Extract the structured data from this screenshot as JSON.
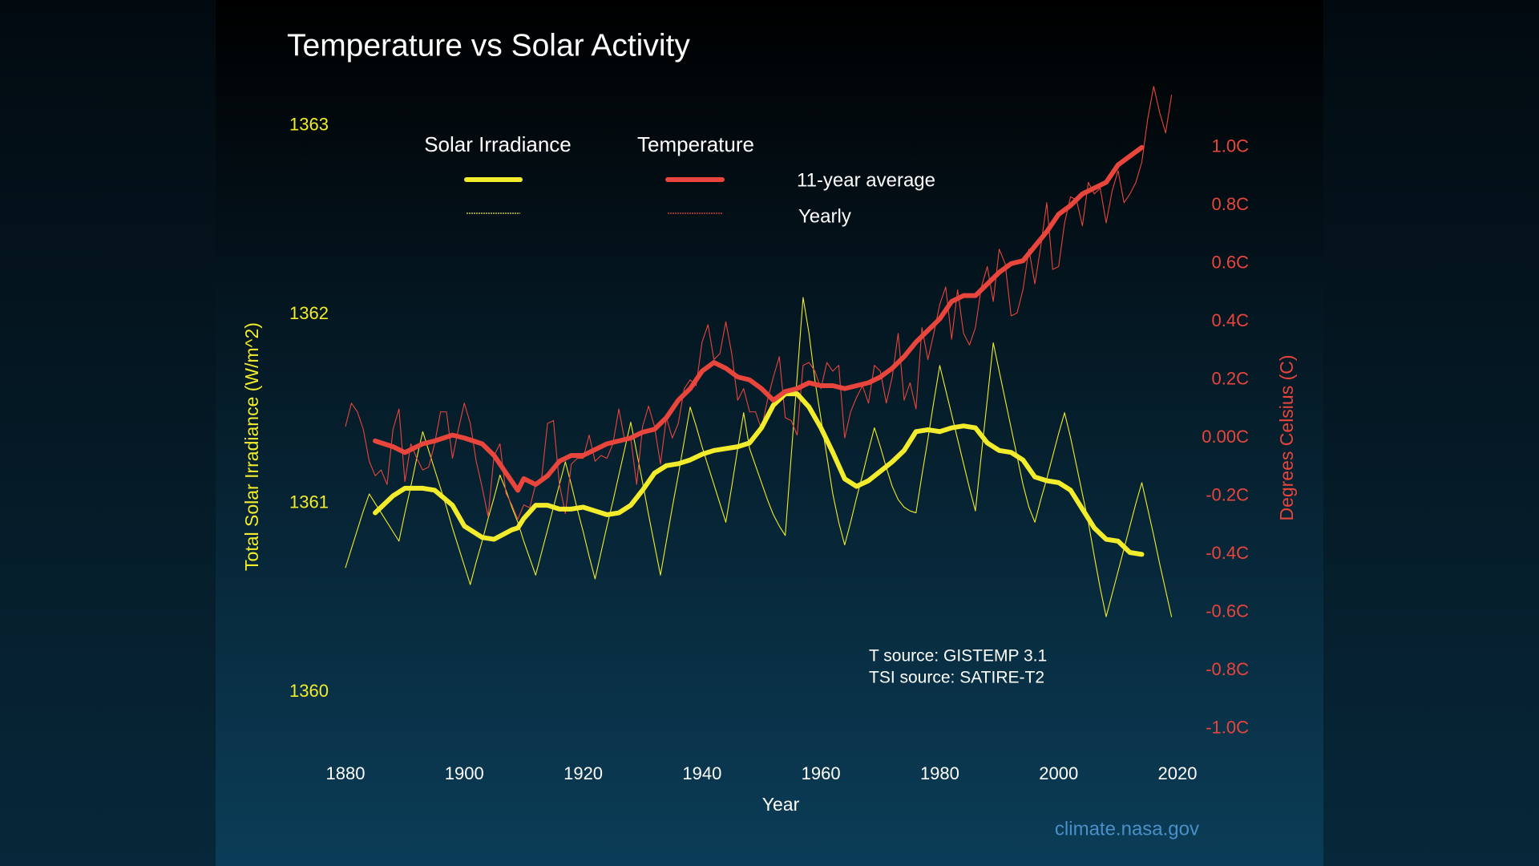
{
  "chart_data": {
    "type": "line",
    "title": "Temperature vs Solar Activity",
    "x_label": "Year",
    "y_label": "Total Solar Irradiance (W/m^2)",
    "y2_label": "Degrees Celsius (C)",
    "xlim": [
      1880,
      2020
    ],
    "xticks": [
      1880,
      1900,
      1920,
      1940,
      1960,
      1980,
      2000,
      2020
    ],
    "ylim": [
      1359.7,
      1363.3
    ],
    "yticks": [
      1360,
      1361,
      1362,
      1363
    ],
    "y2lim": [
      -1.07,
      1.27
    ],
    "y2ticks": [
      {
        "value": 1,
        "label": "1.0C"
      },
      {
        "value": 0.8,
        "label": "0.8C"
      },
      {
        "value": 0.6,
        "label": "0.6C"
      },
      {
        "value": 0.4,
        "label": "0.4C"
      },
      {
        "value": 0.2,
        "label": "0.2C"
      },
      {
        "value": 0,
        "label": "0.00C"
      },
      {
        "value": -0.2,
        "label": "-0.2C"
      },
      {
        "value": -0.4,
        "label": "-0.4C"
      },
      {
        "value": -0.6,
        "label": "-0.6C"
      },
      {
        "value": -0.8,
        "label": "-0.8C"
      },
      {
        "value": -1,
        "label": "-1.0C"
      }
    ],
    "grid": false,
    "legend_rows": [
      "11-year average",
      "Yearly"
    ],
    "x": [
      1880,
      1881,
      1882,
      1883,
      1884,
      1885,
      1886,
      1887,
      1888,
      1889,
      1890,
      1891,
      1892,
      1893,
      1894,
      1895,
      1896,
      1897,
      1898,
      1899,
      1900,
      1901,
      1902,
      1903,
      1904,
      1905,
      1906,
      1907,
      1908,
      1909,
      1910,
      1911,
      1912,
      1913,
      1914,
      1915,
      1916,
      1917,
      1918,
      1919,
      1920,
      1921,
      1922,
      1923,
      1924,
      1925,
      1926,
      1927,
      1928,
      1929,
      1930,
      1931,
      1932,
      1933,
      1934,
      1935,
      1936,
      1937,
      1938,
      1939,
      1940,
      1941,
      1942,
      1943,
      1944,
      1945,
      1946,
      1947,
      1948,
      1949,
      1950,
      1951,
      1952,
      1953,
      1954,
      1955,
      1956,
      1957,
      1958,
      1959,
      1960,
      1961,
      1962,
      1963,
      1964,
      1965,
      1966,
      1967,
      1968,
      1969,
      1970,
      1971,
      1972,
      1973,
      1974,
      1975,
      1976,
      1977,
      1978,
      1979,
      1980,
      1981,
      1982,
      1983,
      1984,
      1985,
      1986,
      1987,
      1988,
      1989,
      1990,
      1991,
      1992,
      1993,
      1994,
      1995,
      1996,
      1997,
      1998,
      1999,
      2000,
      2001,
      2002,
      2003,
      2004,
      2005,
      2006,
      2007,
      2008,
      2009,
      2010,
      2011,
      2012,
      2013,
      2014,
      2015,
      2016,
      2017,
      2018,
      2019
    ],
    "average_x": [
      1885,
      1888,
      1890,
      1893,
      1895,
      1898,
      1900,
      1903,
      1905,
      1908,
      1909,
      1910,
      1912,
      1914,
      1916,
      1918,
      1920,
      1922,
      1924,
      1926,
      1928,
      1930,
      1932,
      1934,
      1936,
      1938,
      1940,
      1942,
      1944,
      1946,
      1948,
      1950,
      1952,
      1954,
      1956,
      1958,
      1960,
      1962,
      1964,
      1966,
      1968,
      1970,
      1972,
      1974,
      1976,
      1978,
      1980,
      1982,
      1984,
      1986,
      1988,
      1990,
      1992,
      1994,
      1996,
      1998,
      2000,
      2002,
      2004,
      2006,
      2008,
      2010,
      2012,
      2014
    ],
    "series": [
      {
        "name": "Solar Irradiance",
        "color": "#f2ec2c",
        "axis": "y",
        "values": [
          1360.66,
          1360.76,
          1360.86,
          1360.96,
          1361.05,
          1361.0,
          1360.95,
          1360.9,
          1360.85,
          1360.8,
          1360.95,
          1361.09,
          1361.24,
          1361.38,
          1361.28,
          1361.18,
          1361.08,
          1360.98,
          1360.87,
          1360.77,
          1360.67,
          1360.57,
          1360.69,
          1360.8,
          1360.92,
          1361.03,
          1361.15,
          1361.07,
          1360.98,
          1360.9,
          1360.8,
          1360.71,
          1360.62,
          1360.74,
          1360.86,
          1360.98,
          1361.1,
          1361.22,
          1361.1,
          1360.97,
          1360.85,
          1360.72,
          1360.6,
          1360.74,
          1360.88,
          1361.01,
          1361.15,
          1361.29,
          1361.43,
          1361.27,
          1361.11,
          1360.94,
          1360.78,
          1360.62,
          1360.8,
          1360.98,
          1361.15,
          1361.33,
          1361.51,
          1361.41,
          1361.3,
          1361.2,
          1361.1,
          1361.0,
          1360.9,
          1361.09,
          1361.29,
          1361.48,
          1361.29,
          1361.2,
          1361.11,
          1361.02,
          1360.94,
          1360.88,
          1360.83,
          1361.25,
          1361.67,
          1362.09,
          1361.9,
          1361.65,
          1361.45,
          1361.25,
          1361.05,
          1360.9,
          1360.78,
          1360.9,
          1361.03,
          1361.15,
          1361.28,
          1361.4,
          1361.3,
          1361.19,
          1361.09,
          1361.02,
          1360.98,
          1360.96,
          1360.95,
          1361.15,
          1361.34,
          1361.54,
          1361.73,
          1361.6,
          1361.47,
          1361.34,
          1361.21,
          1361.08,
          1360.96,
          1361.26,
          1361.55,
          1361.85,
          1361.7,
          1361.55,
          1361.4,
          1361.25,
          1361.1,
          1360.98,
          1360.9,
          1361.02,
          1361.13,
          1361.25,
          1361.37,
          1361.48,
          1361.35,
          1361.2,
          1361.05,
          1360.9,
          1360.72,
          1360.55,
          1360.4,
          1360.52,
          1360.64,
          1360.76,
          1360.88,
          1361.0,
          1361.11,
          1360.97,
          1360.83,
          1360.68,
          1360.54,
          1360.4
        ],
        "average": [
          1360.95,
          1361.04,
          1361.08,
          1361.08,
          1361.07,
          1360.99,
          1360.88,
          1360.82,
          1360.81,
          1360.86,
          1360.87,
          1360.92,
          1360.99,
          1360.99,
          1360.97,
          1360.97,
          1360.98,
          1360.96,
          1360.94,
          1360.95,
          1360.99,
          1361.07,
          1361.16,
          1361.2,
          1361.21,
          1361.23,
          1361.26,
          1361.28,
          1361.29,
          1361.3,
          1361.32,
          1361.4,
          1361.52,
          1361.58,
          1361.58,
          1361.51,
          1361.4,
          1361.27,
          1361.13,
          1361.09,
          1361.12,
          1361.17,
          1361.22,
          1361.28,
          1361.38,
          1361.39,
          1361.38,
          1361.4,
          1361.41,
          1361.4,
          1361.32,
          1361.28,
          1361.27,
          1361.23,
          1361.14,
          1361.12,
          1361.11,
          1361.07,
          1360.97,
          1360.87,
          1360.81,
          1360.8,
          1360.74,
          1360.73
        ]
      },
      {
        "name": "Temperature",
        "color": "#e8453c",
        "axis": "y2",
        "values": [
          0.04,
          0.12,
          0.09,
          0.03,
          -0.08,
          -0.13,
          -0.11,
          -0.16,
          0.03,
          0.1,
          -0.15,
          -0.02,
          -0.07,
          -0.11,
          -0.1,
          -0.02,
          0.09,
          0.09,
          -0.07,
          0.03,
          0.12,
          0.05,
          -0.08,
          -0.17,
          -0.27,
          -0.06,
          -0.02,
          -0.19,
          -0.23,
          -0.28,
          -0.23,
          -0.24,
          -0.16,
          -0.14,
          0.05,
          0.06,
          -0.16,
          -0.26,
          -0.09,
          -0.07,
          -0.07,
          0.01,
          -0.08,
          -0.06,
          -0.07,
          -0.02,
          0.1,
          -0.01,
          0.0,
          -0.16,
          0.04,
          0.11,
          0.04,
          -0.09,
          0.07,
          0.0,
          0.05,
          0.17,
          0.2,
          0.18,
          0.33,
          0.39,
          0.27,
          0.29,
          0.4,
          0.29,
          0.13,
          0.17,
          0.09,
          0.09,
          0.03,
          0.13,
          0.21,
          0.28,
          0.07,
          0.06,
          0.01,
          0.25,
          0.26,
          0.23,
          0.17,
          0.26,
          0.23,
          0.25,
          0.0,
          0.09,
          0.14,
          0.18,
          0.12,
          0.25,
          0.23,
          0.12,
          0.21,
          0.36,
          0.13,
          0.19,
          0.1,
          0.38,
          0.27,
          0.36,
          0.46,
          0.52,
          0.34,
          0.51,
          0.36,
          0.32,
          0.38,
          0.52,
          0.59,
          0.47,
          0.65,
          0.6,
          0.42,
          0.43,
          0.51,
          0.65,
          0.53,
          0.66,
          0.81,
          0.58,
          0.59,
          0.74,
          0.83,
          0.82,
          0.73,
          0.88,
          0.84,
          0.86,
          0.74,
          0.85,
          0.92,
          0.81,
          0.84,
          0.88,
          0.95,
          1.1,
          1.21,
          1.12,
          1.05,
          1.18
        ],
        "average": [
          -0.01,
          -0.03,
          -0.05,
          -0.02,
          -0.01,
          0.01,
          0.0,
          -0.02,
          -0.06,
          -0.15,
          -0.18,
          -0.14,
          -0.16,
          -0.13,
          -0.08,
          -0.06,
          -0.06,
          -0.04,
          -0.02,
          -0.01,
          0.0,
          0.02,
          0.03,
          0.07,
          0.13,
          0.17,
          0.23,
          0.26,
          0.24,
          0.21,
          0.2,
          0.17,
          0.13,
          0.16,
          0.17,
          0.19,
          0.18,
          0.18,
          0.17,
          0.18,
          0.19,
          0.21,
          0.24,
          0.28,
          0.33,
          0.37,
          0.41,
          0.47,
          0.49,
          0.49,
          0.53,
          0.57,
          0.6,
          0.61,
          0.66,
          0.71,
          0.77,
          0.8,
          0.84,
          0.86,
          0.88,
          0.94,
          0.97,
          1.0
        ]
      }
    ],
    "notes": [
      "T source: GISTEMP 3.1",
      "TSI source: SATIRE-T2"
    ],
    "credit": "climate.nasa.gov"
  }
}
